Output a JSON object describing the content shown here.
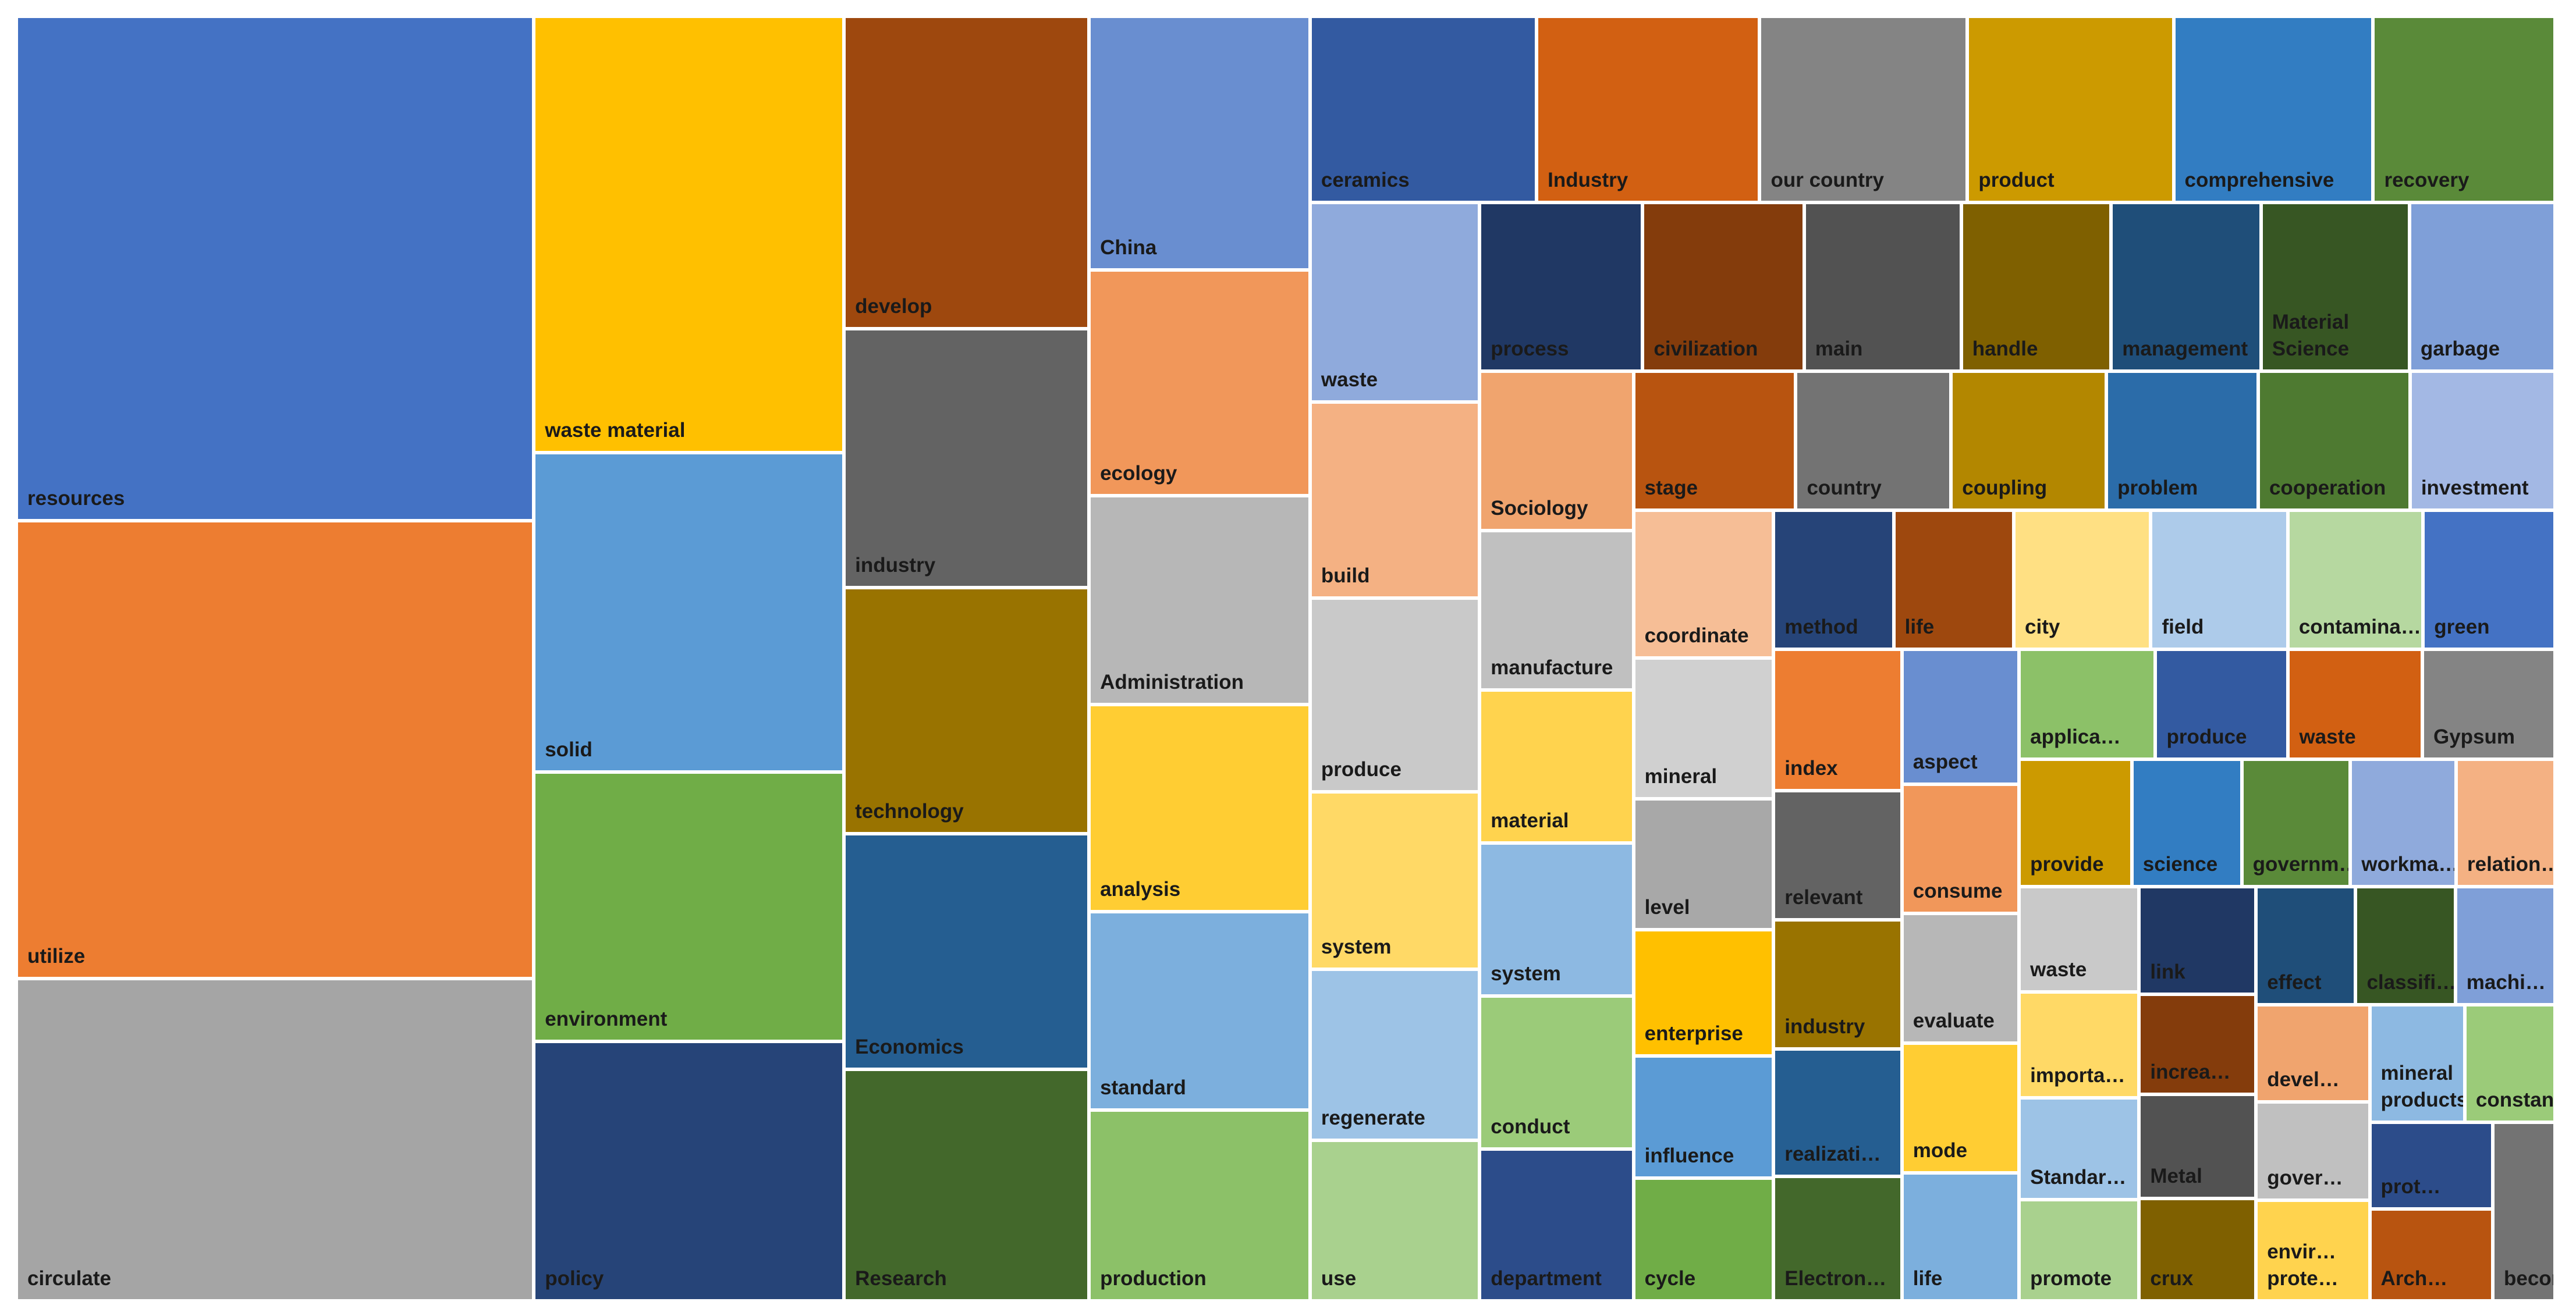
{
  "chart_data": {
    "type": "treemap",
    "categories": [
      "resources",
      "utilize",
      "circulate",
      "waste material",
      "solid",
      "environment",
      "policy",
      "develop",
      "industry",
      "technology",
      "Economics",
      "Research",
      "China",
      "ecology",
      "Administration",
      "analysis",
      "standard",
      "production",
      "ceramics",
      "Industry",
      "our country",
      "product",
      "comprehensive",
      "recovery",
      "waste",
      "build",
      "produce",
      "system",
      "regenerate",
      "use",
      "process",
      "civilization",
      "main",
      "handle",
      "management",
      "Material Science",
      "garbage",
      "Sociology",
      "manufacture",
      "material",
      "system",
      "conduct",
      "department",
      "stage",
      "country",
      "coupling",
      "problem",
      "cooperation",
      "investment",
      "coordinate",
      "mineral",
      "level",
      "enterprise",
      "influence",
      "cycle",
      "method",
      "life",
      "city",
      "field",
      "contamina…",
      "green",
      "index",
      "relevant",
      "industry",
      "realizati…",
      "Electron…",
      "aspect",
      "consume",
      "evaluate",
      "mode",
      "life",
      "applica…",
      "produce",
      "waste",
      "Gypsum",
      "provide",
      "science",
      "governm…",
      "workma…",
      "relation…",
      "waste",
      "importa…",
      "Standar…",
      "promote",
      "link",
      "increa…",
      "Metal",
      "crux",
      "effect",
      "classifi…",
      "machi…",
      "devel…",
      "gover…",
      "envir… prote…",
      "mineral products",
      "constan…",
      "prot…",
      "Arch…",
      "become"
    ],
    "values": [
      9676,
      8779,
      6175,
      5016,
      3667,
      3096,
      2981,
      2837,
      2347,
      2234,
      2141,
      2101,
      2075,
      1849,
      1711,
      1699,
      1624,
      1562,
      1562,
      1538,
      1432,
      1421,
      1376,
      1254,
      1254,
      1232,
      1219,
      1114,
      1075,
      1008,
      1018,
      1008,
      981,
      936,
      936,
      927,
      909,
      909,
      909,
      873,
      873,
      873,
      864,
      837,
      801,
      801,
      783,
      783,
      748,
      766,
      731,
      679,
      654,
      636,
      636,
      619,
      619,
      706,
      706,
      697,
      680,
      672,
      614,
      614,
      607,
      592,
      585,
      563,
      563,
      563,
      555,
      555,
      540,
      546,
      540,
      533,
      520,
      514,
      500,
      468,
      469,
      469,
      455,
      449,
      465,
      435,
      450,
      443,
      435,
      435,
      435,
      409,
      416,
      423,
      415,
      394,
      395,
      419,
      412
    ],
    "colors": [
      "#4472C4",
      "#ED7D31",
      "#A5A5A5",
      "#FFC000",
      "#5B9BD5",
      "#70AD47",
      "#264478",
      "#9E480E",
      "#636363",
      "#997300",
      "#255E91",
      "#43682B",
      "#698ED0",
      "#F1975A",
      "#B7B7B7",
      "#FFCD33",
      "#7CAFDD",
      "#8CC168",
      "#335AA1",
      "#D26012",
      "#848484",
      "#CC9A00",
      "#327DC2",
      "#5A8A39",
      "#8FAADC",
      "#F4B183",
      "#C9C9C9",
      "#FFD966",
      "#9DC3E6",
      "#A9D18E",
      "#203864",
      "#843C0C",
      "#525252",
      "#7F6000",
      "#1F4E79",
      "#375623",
      "#7F9FD8",
      "#F0A46E",
      "#C0C0C0",
      "#FFD34E",
      "#8DB9E2",
      "#9BCB79",
      "#2C4C8A",
      "#B85410",
      "#737373",
      "#B38700",
      "#2B6CA9",
      "#4E7A31",
      "#A3B8E4",
      "#F6BE96",
      "#D0D0D0",
      "#A8A8A8",
      "#FFC000",
      "#5B9BD5",
      "#70AD47",
      "#264478",
      "#9E480E",
      "#FFE083",
      "#ADCBEA",
      "#B6D8A0",
      "#4472C4",
      "#ED7D31",
      "#636363",
      "#997300",
      "#255E91",
      "#43682B",
      "#698ED0",
      "#F1975A",
      "#B7B7B7",
      "#FFCD33",
      "#7CAFDD",
      "#8CC168",
      "#335AA1",
      "#D26012",
      "#848484",
      "#CC9A00",
      "#327DC2",
      "#5A8A39",
      "#8FAADC",
      "#F4B183",
      "#C9C9C9",
      "#FFD966",
      "#9DC3E6",
      "#A9D18E",
      "#203864",
      "#843C0C",
      "#525252",
      "#7F6000",
      "#1F4E79",
      "#375623",
      "#7F9FD8",
      "#F0A46E",
      "#C0C0C0",
      "#FFD34E",
      "#8DB9E2",
      "#9BCB79",
      "#2C4C8A",
      "#B85410",
      "#737373"
    ]
  }
}
